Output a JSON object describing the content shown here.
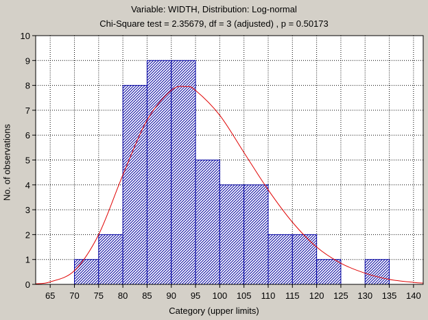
{
  "chart_data": {
    "type": "bar",
    "title": "Variable: WIDTH, Distribution: Log-normal",
    "subtitle": "Chi-Square test = 2.35679, df = 3 (adjusted) , p = 0.50173",
    "xlabel": "Category (upper limits)",
    "ylabel": "No. of observations",
    "xlim": [
      62,
      142
    ],
    "ylim": [
      0,
      10
    ],
    "x_ticks": [
      65,
      70,
      75,
      80,
      85,
      90,
      95,
      100,
      105,
      110,
      115,
      120,
      125,
      130,
      135,
      140
    ],
    "y_ticks": [
      0,
      1,
      2,
      3,
      4,
      5,
      6,
      7,
      8,
      9,
      10
    ],
    "bins": [
      {
        "from": 70,
        "to": 75,
        "count": 1
      },
      {
        "from": 75,
        "to": 80,
        "count": 2
      },
      {
        "from": 80,
        "to": 85,
        "count": 8
      },
      {
        "from": 85,
        "to": 90,
        "count": 9
      },
      {
        "from": 90,
        "to": 95,
        "count": 9
      },
      {
        "from": 95,
        "to": 100,
        "count": 5
      },
      {
        "from": 100,
        "to": 105,
        "count": 4
      },
      {
        "from": 105,
        "to": 110,
        "count": 4
      },
      {
        "from": 110,
        "to": 115,
        "count": 2
      },
      {
        "from": 115,
        "to": 120,
        "count": 2
      },
      {
        "from": 120,
        "to": 125,
        "count": 1
      },
      {
        "from": 125,
        "to": 130,
        "count": 0
      },
      {
        "from": 130,
        "to": 135,
        "count": 1
      }
    ],
    "fit_curve": {
      "distribution": "Log-normal",
      "x": [
        62,
        65,
        70,
        75,
        80,
        85,
        90,
        93,
        95,
        100,
        105,
        110,
        115,
        120,
        125,
        130,
        135,
        140,
        142
      ],
      "y": [
        0.02,
        0.1,
        0.55,
        2.0,
        4.4,
        6.6,
        7.8,
        7.95,
        7.8,
        6.8,
        5.3,
        3.8,
        2.5,
        1.5,
        0.85,
        0.45,
        0.2,
        0.08,
        0.05
      ]
    },
    "grid": true,
    "colors": {
      "background": "#d4d0c8",
      "plot_background": "#ffffff",
      "bar_stroke": "#0000a0",
      "bar_hatch": "#0000a0",
      "curve": "#e00000",
      "grid": "#000000"
    }
  }
}
